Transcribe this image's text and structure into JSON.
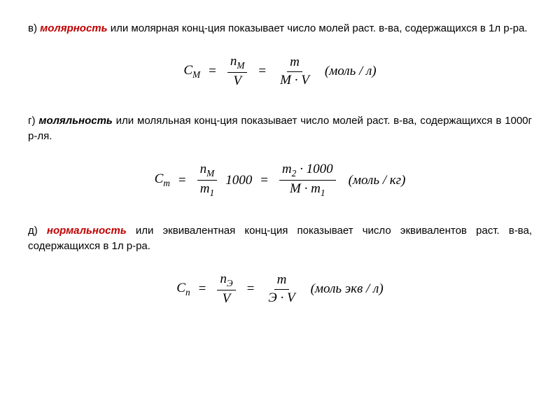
{
  "sections": {
    "molarity": {
      "prefix": "в) ",
      "term": "молярность",
      "description": " или молярная конц-ция показывает число молей раст. в-ва, содержащихся в 1л р-ра.",
      "formula": {
        "lhs_var": "С",
        "lhs_sub": "М",
        "frac1_num": "n",
        "frac1_num_sub": "М",
        "frac1_den": "V",
        "frac2_num": "m",
        "frac2_den_left": "M",
        "frac2_den_right": "V",
        "unit": "(моль / л)"
      }
    },
    "molality": {
      "prefix": "г) ",
      "term": "моляльность",
      "description": " или моляльная конц-ция показывает число молей раст. в-ва, содержащихся в 1000г р-ля.",
      "formula": {
        "lhs_var": "С",
        "lhs_sub": "m",
        "frac1_num": "n",
        "frac1_num_sub": "М",
        "frac1_den": "m",
        "frac1_den_sub": "1",
        "mult1": "1000",
        "frac2_num_left": "m",
        "frac2_num_left_sub": "2",
        "frac2_num_right": "1000",
        "frac2_den_left": "M",
        "frac2_den_right": "m",
        "frac2_den_right_sub": "1",
        "unit": "(моль / кг)"
      }
    },
    "normality": {
      "prefix": "д) ",
      "term": "нормальность",
      "description": " или эквивалентная конц-ция показывает число эквивалентов раст. в-ва, содержащихся в 1л р-ра.",
      "formula": {
        "lhs_var": "С",
        "lhs_sub": "n",
        "frac1_num": "n",
        "frac1_num_sub": "Э",
        "frac1_den": "V",
        "frac2_num": "m",
        "frac2_den_left": "Э",
        "frac2_den_right": "V",
        "unit": "(моль экв / л)"
      }
    }
  },
  "colors": {
    "term_red": "#c00000",
    "text": "#000000",
    "background": "#ffffff"
  },
  "typography": {
    "body_font": "Arial, sans-serif",
    "formula_font": "Times New Roman, serif",
    "body_size": 15,
    "formula_size": 19
  }
}
